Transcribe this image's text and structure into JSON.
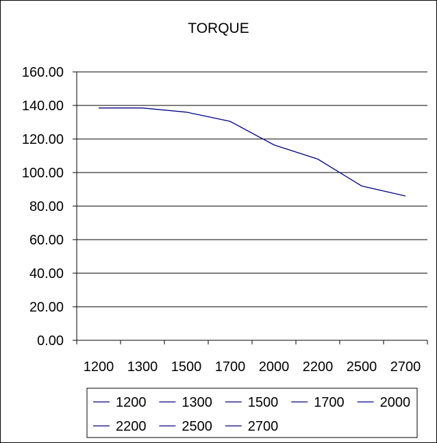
{
  "chart_data": {
    "type": "line",
    "title": "TORQUE",
    "xlabel": "",
    "ylabel": "",
    "categories": [
      "1200",
      "1300",
      "1500",
      "1700",
      "2000",
      "2200",
      "2500",
      "2700"
    ],
    "series": [
      {
        "values": [
          138.5,
          138.5,
          136,
          130.5,
          116.5,
          108,
          92,
          86
        ],
        "color": "#000080"
      }
    ],
    "ylim": [
      0,
      160
    ],
    "yticks": [
      "0.00",
      "20.00",
      "40.00",
      "60.00",
      "80.00",
      "100.00",
      "120.00",
      "140.00",
      "160.00"
    ],
    "grid": true,
    "legend": {
      "placement": "bottom",
      "entries": [
        "1200",
        "1300",
        "1500",
        "1700",
        "2000",
        "2200",
        "2500",
        "2700"
      ],
      "color": "#000080"
    }
  }
}
